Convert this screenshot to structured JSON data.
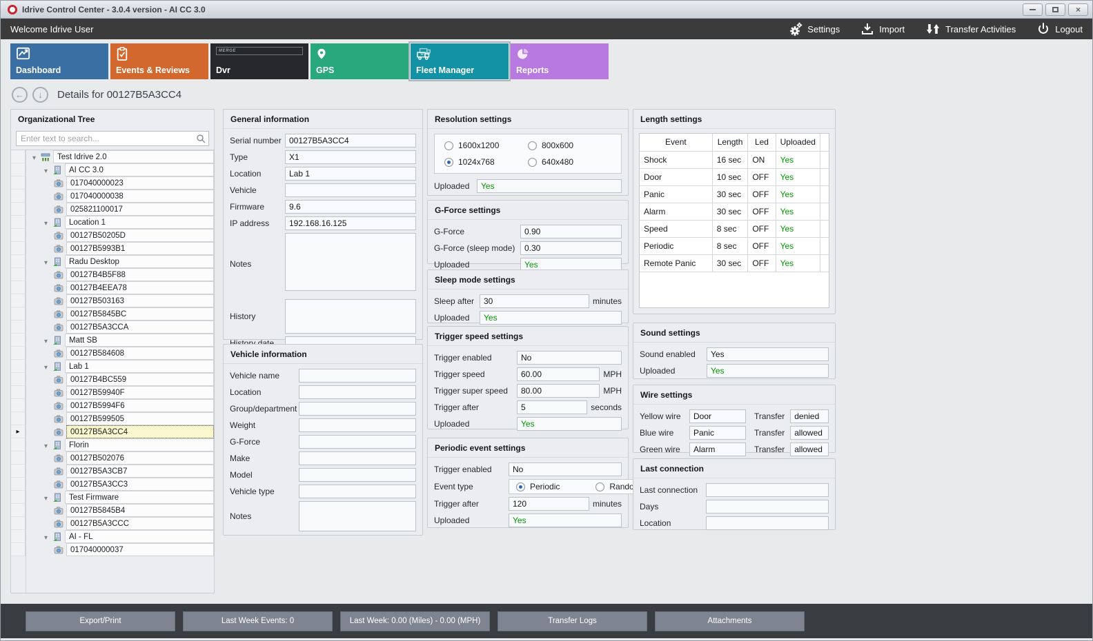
{
  "window": {
    "title": "Idrive Control Center - 3.0.4 version - AI CC 3.0"
  },
  "topbar": {
    "welcome": "Welcome Idrive User",
    "settings": "Settings",
    "import": "Import",
    "transfer": "Transfer Activities",
    "logout": "Logout"
  },
  "tabs": [
    {
      "label": "Dashboard",
      "color": "#3a6fa3",
      "selected": false
    },
    {
      "label": "Events & Reviews",
      "color": "#d2682e",
      "selected": false
    },
    {
      "label": "Dvr",
      "color": "#26282b",
      "selected": false
    },
    {
      "label": "GPS",
      "color": "#28a87c",
      "selected": false
    },
    {
      "label": "Fleet Manager",
      "color": "#1292a4",
      "selected": true
    },
    {
      "label": "Reports",
      "color": "#b87ae0",
      "selected": false
    }
  ],
  "dvr_badge": "MERGE",
  "details": {
    "title": "Details for 00127B5A3CC4"
  },
  "tree": {
    "title": "Organizational Tree",
    "search_placeholder": "Enter text to search...",
    "items": [
      {
        "label": "Test Idrive 2.0",
        "level": 0,
        "type": "root"
      },
      {
        "label": "AI CC 3.0",
        "level": 1,
        "type": "group"
      },
      {
        "label": "017040000023",
        "level": 2,
        "type": "device"
      },
      {
        "label": "017040000038",
        "level": 2,
        "type": "device"
      },
      {
        "label": "025821100017",
        "level": 2,
        "type": "device"
      },
      {
        "label": "Location 1",
        "level": 1,
        "type": "group"
      },
      {
        "label": "00127B50205D",
        "level": 2,
        "type": "device"
      },
      {
        "label": "00127B5993B1",
        "level": 2,
        "type": "device"
      },
      {
        "label": "Radu Desktop",
        "level": 1,
        "type": "group"
      },
      {
        "label": "00127B4B5F88",
        "level": 2,
        "type": "device"
      },
      {
        "label": "00127B4EEA78",
        "level": 2,
        "type": "device"
      },
      {
        "label": "00127B503163",
        "level": 2,
        "type": "device"
      },
      {
        "label": "00127B5845BC",
        "level": 2,
        "type": "device"
      },
      {
        "label": "00127B5A3CCA",
        "level": 2,
        "type": "device"
      },
      {
        "label": "Matt SB",
        "level": 1,
        "type": "group"
      },
      {
        "label": "00127B584608",
        "level": 2,
        "type": "device"
      },
      {
        "label": "Lab 1",
        "level": 1,
        "type": "group"
      },
      {
        "label": "00127B4BC559",
        "level": 2,
        "type": "device"
      },
      {
        "label": "00127B59940F",
        "level": 2,
        "type": "device"
      },
      {
        "label": "00127B5994F6",
        "level": 2,
        "type": "device"
      },
      {
        "label": "00127B599505",
        "level": 2,
        "type": "device"
      },
      {
        "label": "00127B5A3CC4",
        "level": 2,
        "type": "device",
        "selected": true
      },
      {
        "label": "Florin",
        "level": 1,
        "type": "group"
      },
      {
        "label": "00127B502076",
        "level": 2,
        "type": "device"
      },
      {
        "label": "00127B5A3CB7",
        "level": 2,
        "type": "device"
      },
      {
        "label": "00127B5A3CC3",
        "level": 2,
        "type": "device"
      },
      {
        "label": "Test Firmware",
        "level": 1,
        "type": "group"
      },
      {
        "label": "00127B5845B4",
        "level": 2,
        "type": "device"
      },
      {
        "label": "00127B5A3CCC",
        "level": 2,
        "type": "device"
      },
      {
        "label": "AI - FL",
        "level": 1,
        "type": "group"
      },
      {
        "label": "017040000037",
        "level": 2,
        "type": "device"
      }
    ]
  },
  "general": {
    "title": "General information",
    "fields": [
      {
        "label": "Serial number",
        "value": "00127B5A3CC4"
      },
      {
        "label": "Type",
        "value": "X1"
      },
      {
        "label": "Location",
        "value": "Lab 1"
      },
      {
        "label": "Vehicle",
        "value": ""
      },
      {
        "label": "Firmware",
        "value": "9.6"
      },
      {
        "label": "IP address",
        "value": "192.168.16.125"
      }
    ],
    "notes_label": "Notes",
    "notes_value": "",
    "history_label": "History",
    "history_value": "",
    "history_date_label": "History date",
    "history_date_value": ""
  },
  "vehicle": {
    "title": "Vehicle information",
    "fields": [
      {
        "label": "Vehicle name",
        "value": ""
      },
      {
        "label": "Location",
        "value": ""
      },
      {
        "label": "Group/department",
        "value": ""
      },
      {
        "label": "Weight",
        "value": ""
      },
      {
        "label": "G-Force",
        "value": ""
      },
      {
        "label": "Make",
        "value": ""
      },
      {
        "label": "Model",
        "value": ""
      },
      {
        "label": "Vehicle type",
        "value": ""
      }
    ],
    "notes_label": "Notes",
    "notes_value": ""
  },
  "resolution": {
    "title": "Resolution settings",
    "options": [
      {
        "label": "1600x1200",
        "checked": false
      },
      {
        "label": "800x600",
        "checked": false
      },
      {
        "label": "1024x768",
        "checked": true
      },
      {
        "label": "640x480",
        "checked": false
      }
    ],
    "uploaded_label": "Uploaded",
    "uploaded_value": "Yes"
  },
  "gforce": {
    "title": "G-Force settings",
    "fields": [
      {
        "label": "G-Force",
        "value": "0.90"
      },
      {
        "label": "G-Force (sleep mode)",
        "value": "0.30"
      },
      {
        "label": "Uploaded",
        "value": "Yes",
        "green": true
      }
    ]
  },
  "sleep": {
    "title": "Sleep mode settings",
    "fields": [
      {
        "label": "Sleep after",
        "value": "30",
        "unit": "minutes"
      },
      {
        "label": "Uploaded",
        "value": "Yes",
        "green": true
      }
    ]
  },
  "trigger_speed": {
    "title": "Trigger speed settings",
    "fields": [
      {
        "label": "Trigger enabled",
        "value": "No"
      },
      {
        "label": "Trigger speed",
        "value": "60.00",
        "unit": "MPH"
      },
      {
        "label": "Trigger super speed",
        "value": "80.00",
        "unit": "MPH"
      },
      {
        "label": "Trigger after",
        "value": "5",
        "unit": "seconds"
      },
      {
        "label": "Uploaded",
        "value": "Yes",
        "green": true
      }
    ]
  },
  "periodic": {
    "title": "Periodic event settings",
    "enabled_label": "Trigger enabled",
    "enabled_value": "No",
    "event_type_label": "Event type",
    "options": [
      {
        "label": "Periodic",
        "checked": true
      },
      {
        "label": "Random",
        "checked": false
      }
    ],
    "after_label": "Trigger after",
    "after_value": "120",
    "after_unit": "minutes",
    "uploaded_label": "Uploaded",
    "uploaded_value": "Yes"
  },
  "length": {
    "title": "Length settings",
    "columns": [
      "Event",
      "Length",
      "Led",
      "Uploaded"
    ],
    "rows": [
      {
        "event": "Shock",
        "length": "16 sec",
        "led": "ON",
        "uploaded": "Yes"
      },
      {
        "event": "Door",
        "length": "10 sec",
        "led": "OFF",
        "uploaded": "Yes"
      },
      {
        "event": "Panic",
        "length": "30 sec",
        "led": "OFF",
        "uploaded": "Yes"
      },
      {
        "event": "Alarm",
        "length": "30 sec",
        "led": "OFF",
        "uploaded": "Yes"
      },
      {
        "event": "Speed",
        "length": "8 sec",
        "led": "OFF",
        "uploaded": "Yes"
      },
      {
        "event": "Periodic",
        "length": "8 sec",
        "led": "OFF",
        "uploaded": "Yes"
      },
      {
        "event": "Remote Panic",
        "length": "30 sec",
        "led": "OFF",
        "uploaded": "Yes"
      }
    ]
  },
  "sound": {
    "title": "Sound settings",
    "fields": [
      {
        "label": "Sound enabled",
        "value": "Yes"
      },
      {
        "label": "Uploaded",
        "value": "Yes",
        "green": true
      }
    ]
  },
  "wire": {
    "title": "Wire settings",
    "rows": [
      {
        "label": "Yellow wire",
        "value": "Door",
        "transfer_label": "Transfer",
        "transfer_value": "denied"
      },
      {
        "label": "Blue wire",
        "value": "Panic",
        "transfer_label": "Transfer",
        "transfer_value": "allowed"
      },
      {
        "label": "Green wire",
        "value": "Alarm",
        "transfer_label": "Transfer",
        "transfer_value": "allowed"
      }
    ]
  },
  "last_connection": {
    "title": "Last connection",
    "fields": [
      {
        "label": "Last connection",
        "value": ""
      },
      {
        "label": "Days",
        "value": ""
      },
      {
        "label": "Location",
        "value": ""
      }
    ]
  },
  "bottom": {
    "buttons": [
      "Export/Print",
      "Last Week Events: 0",
      "Last Week: 0.00 (Miles) - 0.00 (MPH)",
      "Transfer Logs",
      "Attachments"
    ]
  },
  "colors": {
    "status_green": "#009700",
    "selected_row_bg": "#fbf8d0",
    "topbar_bg": "#3b3b3b"
  }
}
